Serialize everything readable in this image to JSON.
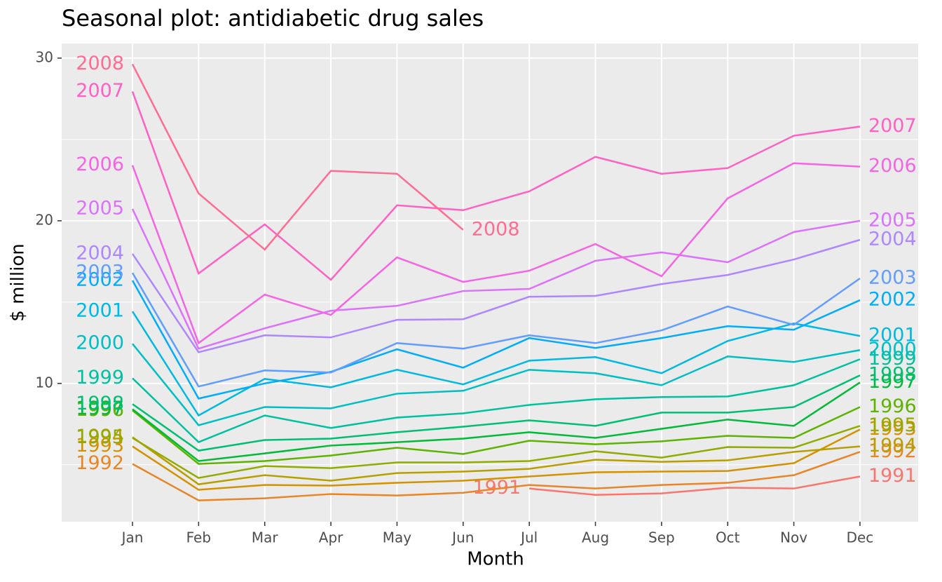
{
  "chart_data": {
    "type": "line",
    "title": "Seasonal plot: antidiabetic drug sales",
    "x_label": "Month",
    "y_label": "$ million",
    "categories": [
      "Jan",
      "Feb",
      "Mar",
      "Apr",
      "May",
      "Jun",
      "Jul",
      "Aug",
      "Sep",
      "Oct",
      "Nov",
      "Dec"
    ],
    "ylim": [
      1.5,
      30.9
    ],
    "yticks": [
      10,
      20,
      30
    ],
    "y_minor_ticks": [
      5,
      15,
      25
    ],
    "grid": true,
    "series": [
      {
        "name": "1991",
        "color": "#F8766D",
        "values": [
          null,
          null,
          null,
          null,
          null,
          null,
          3.54,
          3.15,
          3.24,
          3.59,
          3.54,
          4.28
        ]
      },
      {
        "name": "1992",
        "color": "#E88526",
        "values": [
          5.05,
          2.81,
          2.94,
          3.2,
          3.11,
          3.28,
          3.76,
          3.54,
          3.76,
          3.89,
          4.36,
          5.79
        ]
      },
      {
        "name": "1993",
        "color": "#D39200",
        "values": [
          6.13,
          3.46,
          3.76,
          3.72,
          3.89,
          4.02,
          4.28,
          4.54,
          4.58,
          4.62,
          5.1,
          7.17
        ]
      },
      {
        "name": "1994",
        "color": "#B79F00",
        "values": [
          6.7,
          3.8,
          4.36,
          4.02,
          4.49,
          4.58,
          4.75,
          5.31,
          5.18,
          5.27,
          5.79,
          6.13
        ]
      },
      {
        "name": "1995",
        "color": "#93AA00",
        "values": [
          6.65,
          4.19,
          4.92,
          4.79,
          5.14,
          5.14,
          5.23,
          5.83,
          5.44,
          6.09,
          6.05,
          7.39
        ]
      },
      {
        "name": "1996",
        "color": "#5EB300",
        "values": [
          8.34,
          5.05,
          5.23,
          5.57,
          6.05,
          5.66,
          6.48,
          6.26,
          6.44,
          6.78,
          6.65,
          8.55
        ]
      },
      {
        "name": "1997",
        "color": "#00BA38",
        "values": [
          8.42,
          5.23,
          5.7,
          6.18,
          6.39,
          6.61,
          7.0,
          6.65,
          7.21,
          7.78,
          7.39,
          10.06
        ]
      },
      {
        "name": "1998",
        "color": "#00BF74",
        "values": [
          8.73,
          5.87,
          6.52,
          6.61,
          7.0,
          7.34,
          7.73,
          7.39,
          8.21,
          8.21,
          8.55,
          10.5
        ]
      },
      {
        "name": "1999",
        "color": "#00C19F",
        "values": [
          10.32,
          6.39,
          8.03,
          7.26,
          7.9,
          8.16,
          8.68,
          9.03,
          9.16,
          9.2,
          9.89,
          11.49
        ]
      },
      {
        "name": "2000",
        "color": "#00BFC4",
        "values": [
          12.44,
          7.43,
          8.55,
          8.47,
          9.37,
          9.55,
          10.84,
          10.63,
          9.89,
          11.66,
          11.32,
          12.05
        ]
      },
      {
        "name": "2001",
        "color": "#00B9E3",
        "values": [
          14.43,
          8.03,
          10.28,
          9.76,
          10.84,
          9.94,
          11.4,
          11.62,
          10.63,
          12.61,
          13.69,
          12.92
        ]
      },
      {
        "name": "2002",
        "color": "#00ADFA",
        "values": [
          16.33,
          9.07,
          10.0,
          10.71,
          12.1,
          10.97,
          12.79,
          12.18,
          12.79,
          13.52,
          13.3,
          15.12
        ]
      },
      {
        "name": "2003",
        "color": "#619CFF",
        "values": [
          16.8,
          9.81,
          10.8,
          10.67,
          12.48,
          12.14,
          12.96,
          12.48,
          13.26,
          14.73,
          13.6,
          16.46
        ]
      },
      {
        "name": "2004",
        "color": "#AE87FF",
        "values": [
          17.97,
          11.92,
          12.96,
          12.83,
          13.91,
          13.95,
          15.33,
          15.38,
          16.11,
          16.67,
          17.62,
          18.83
        ]
      },
      {
        "name": "2005",
        "color": "#DB72FB",
        "values": [
          20.73,
          12.14,
          13.39,
          14.47,
          14.77,
          15.68,
          15.81,
          17.54,
          18.06,
          17.45,
          19.31,
          20.0
        ]
      },
      {
        "name": "2006",
        "color": "#F564E3",
        "values": [
          23.41,
          12.48,
          15.46,
          14.21,
          17.75,
          16.24,
          16.93,
          18.57,
          16.59,
          21.38,
          23.54,
          23.33
        ]
      },
      {
        "name": "2007",
        "color": "#FF61C3",
        "values": [
          27.95,
          16.76,
          19.78,
          16.37,
          20.95,
          20.65,
          21.81,
          23.93,
          22.89,
          23.24,
          25.23,
          25.79
        ]
      },
      {
        "name": "2008",
        "color": "#FF6C91",
        "values": [
          29.63,
          21.68,
          18.23,
          23.07,
          22.89,
          19.44,
          null,
          null,
          null,
          null,
          null,
          null
        ]
      }
    ]
  }
}
